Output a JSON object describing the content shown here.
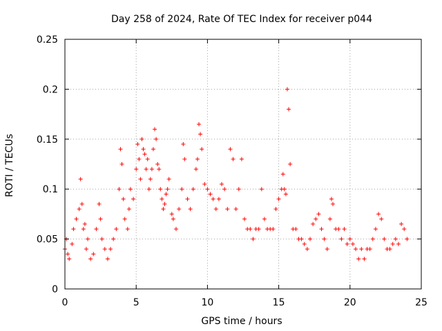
{
  "chart_data": {
    "type": "scatter",
    "title": "Day 258 of 2024, Rate Of TEC Index for receiver p044",
    "xlabel": "GPS time / hours",
    "ylabel": "ROTI / TECUs",
    "xlim": [
      0,
      25
    ],
    "ylim": [
      0,
      0.25
    ],
    "xticks": [
      "0",
      "5",
      "10",
      "15",
      "20",
      "25"
    ],
    "yticks": [
      "0",
      "0.05",
      "0.1",
      "0.15",
      "0.2",
      "0.25"
    ],
    "grid": true,
    "marker": "+",
    "color": "#ff0000",
    "series": [
      {
        "x": [
          0.0,
          0.1,
          0.2,
          0.3,
          0.5,
          0.6,
          0.8,
          1.0,
          1.1,
          1.2,
          1.3,
          1.4,
          1.5,
          1.6,
          1.8,
          2.0,
          2.2,
          2.4,
          2.5,
          2.6,
          2.8,
          3.0,
          3.2,
          3.4,
          3.6,
          3.8,
          3.9,
          4.0,
          4.1,
          4.2,
          4.4,
          4.5,
          4.6,
          4.8,
          5.0,
          5.1,
          5.2,
          5.3,
          5.4,
          5.5,
          5.6,
          5.7,
          5.8,
          5.9,
          6.0,
          6.1,
          6.2,
          6.3,
          6.4,
          6.5,
          6.6,
          6.7,
          6.8,
          6.9,
          7.0,
          7.1,
          7.2,
          7.3,
          7.5,
          7.6,
          7.8,
          8.0,
          8.2,
          8.3,
          8.4,
          8.6,
          8.8,
          9.0,
          9.2,
          9.3,
          9.4,
          9.5,
          9.6,
          9.8,
          10.0,
          10.2,
          10.4,
          10.6,
          10.8,
          11.0,
          11.2,
          11.4,
          11.6,
          11.8,
          12.0,
          12.2,
          12.4,
          12.6,
          12.8,
          13.0,
          13.2,
          13.4,
          13.6,
          13.8,
          14.0,
          14.2,
          14.4,
          14.6,
          14.8,
          15.0,
          15.2,
          15.3,
          15.4,
          15.5,
          15.6,
          15.7,
          15.8,
          16.0,
          16.2,
          16.4,
          16.6,
          16.8,
          17.0,
          17.2,
          17.4,
          17.6,
          17.8,
          18.0,
          18.2,
          18.4,
          18.6,
          18.7,
          18.8,
          19.0,
          19.2,
          19.4,
          19.6,
          19.8,
          20.0,
          20.2,
          20.4,
          20.6,
          20.8,
          21.0,
          21.2,
          21.4,
          21.6,
          21.8,
          22.0,
          22.2,
          22.4,
          22.6,
          22.8,
          23.0,
          23.2,
          23.4,
          23.6,
          23.8,
          24.0
        ],
        "y": [
          0.04,
          0.05,
          0.035,
          0.03,
          0.045,
          0.06,
          0.07,
          0.08,
          0.11,
          0.085,
          0.06,
          0.065,
          0.04,
          0.05,
          0.03,
          0.035,
          0.06,
          0.085,
          0.07,
          0.05,
          0.04,
          0.03,
          0.04,
          0.05,
          0.06,
          0.1,
          0.14,
          0.125,
          0.09,
          0.07,
          0.06,
          0.08,
          0.1,
          0.09,
          0.12,
          0.145,
          0.13,
          0.11,
          0.15,
          0.14,
          0.135,
          0.12,
          0.13,
          0.1,
          0.11,
          0.12,
          0.14,
          0.16,
          0.15,
          0.125,
          0.12,
          0.1,
          0.09,
          0.08,
          0.085,
          0.095,
          0.1,
          0.11,
          0.075,
          0.07,
          0.06,
          0.08,
          0.1,
          0.145,
          0.13,
          0.09,
          0.08,
          0.1,
          0.12,
          0.13,
          0.165,
          0.155,
          0.14,
          0.105,
          0.1,
          0.095,
          0.09,
          0.08,
          0.09,
          0.105,
          0.1,
          0.08,
          0.14,
          0.13,
          0.08,
          0.1,
          0.13,
          0.07,
          0.06,
          0.06,
          0.05,
          0.06,
          0.06,
          0.1,
          0.07,
          0.06,
          0.06,
          0.06,
          0.08,
          0.09,
          0.1,
          0.115,
          0.1,
          0.095,
          0.2,
          0.18,
          0.125,
          0.06,
          0.06,
          0.05,
          0.05,
          0.045,
          0.04,
          0.05,
          0.065,
          0.07,
          0.075,
          0.06,
          0.05,
          0.04,
          0.07,
          0.09,
          0.085,
          0.06,
          0.06,
          0.05,
          0.06,
          0.045,
          0.05,
          0.045,
          0.04,
          0.03,
          0.04,
          0.03,
          0.04,
          0.04,
          0.05,
          0.06,
          0.075,
          0.07,
          0.05,
          0.04,
          0.04,
          0.045,
          0.05,
          0.045,
          0.065,
          0.06,
          0.05
        ]
      }
    ]
  }
}
